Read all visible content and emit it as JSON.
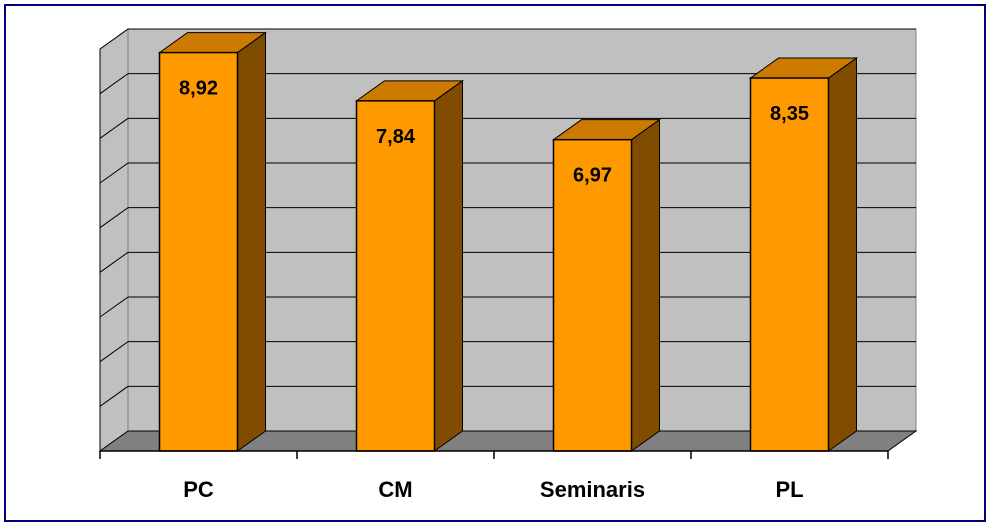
{
  "chart_data": {
    "type": "bar",
    "style": "3d-column",
    "categories": [
      "PC",
      "CM",
      "Seminaris",
      "PL"
    ],
    "values": [
      8.92,
      7.84,
      6.97,
      8.35
    ],
    "data_labels": [
      "8,92",
      "7,84",
      "6,97",
      "8,35"
    ],
    "ylim": [
      0,
      9
    ],
    "y_gridlines": 9,
    "y_tick_labels_shown": false,
    "grid": true,
    "legend": "none",
    "title": "",
    "xlabel": "",
    "ylabel": ""
  },
  "colors": {
    "bar_front": "#FF9900",
    "bar_top": "#CC7A00",
    "bar_side": "#804C00",
    "plot_back_wall": "#C0C0C0",
    "plot_floor": "#808080",
    "frame_border": "#000080"
  }
}
